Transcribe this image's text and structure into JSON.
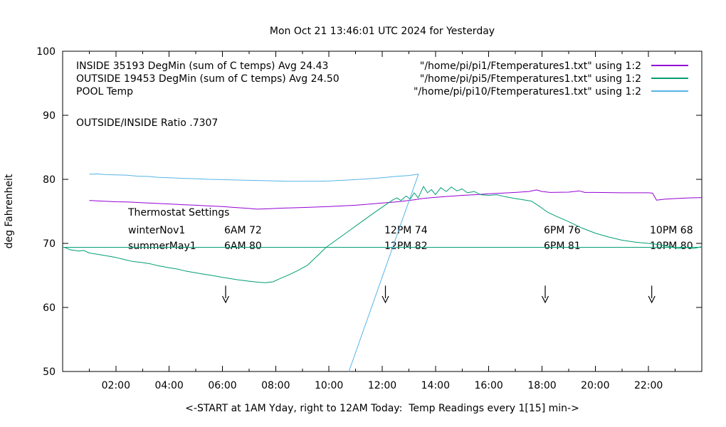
{
  "page": {
    "title": "Mon Oct 21 13:46:01 UTC 2024 for Yesterday"
  },
  "legend": {
    "entries": [
      {
        "left": "INSIDE 35193 DegMin (sum of C temps) Avg 24.43",
        "right": "\"/home/pi/pi1/Ftemperatures1.txt\" using 1:2",
        "color": "#9400D3"
      },
      {
        "left": "OUTSIDE 19453 DegMin (sum of C temps) Avg 24.50",
        "right": "\"/home/pi/pi5/Ftemperatures1.txt\" using 1:2",
        "color": "#009E73"
      },
      {
        "left": "POOL Temp",
        "right": "\"/home/pi/pi10/Ftemperatures1.txt\" using 1:2",
        "color": "#56B4E9"
      }
    ]
  },
  "annotations": {
    "ratio": "OUTSIDE/INSIDE Ratio .7307",
    "thermostat": {
      "heading": "Thermostat Settings",
      "rows": [
        {
          "label": "winterNov1",
          "settings": [
            "6AM 72",
            "12PM 74",
            "6PM 76",
            "10PM 68"
          ]
        },
        {
          "label": "summerMay1",
          "settings": [
            "6AM 80",
            "12PM 82",
            "6PM 81",
            "10PM 80"
          ]
        }
      ],
      "setting_hours": [
        6,
        12,
        18,
        22
      ]
    }
  },
  "chart_data": {
    "type": "line",
    "title": "Mon Oct 21 13:46:01 UTC 2024 for Yesterday",
    "xlabel": "<-START at 1AM Yday, right to 12AM Today:  Temp Readings every 1[15] min->",
    "ylabel": "deg Fahrenheit",
    "xlim": [
      0,
      24
    ],
    "ylim": [
      50,
      100
    ],
    "grid": false,
    "legend_position": "top-left-inside",
    "x_tick_hours": [
      2,
      4,
      6,
      8,
      10,
      12,
      14,
      16,
      18,
      20,
      22
    ],
    "x_tick_labels": [
      "02:00",
      "04:00",
      "06:00",
      "08:00",
      "10:00",
      "12:00",
      "14:00",
      "16:00",
      "18:00",
      "20:00",
      "22:00"
    ],
    "y_ticks": [
      50,
      60,
      70,
      80,
      90,
      100
    ],
    "y_tick_labels": [
      "50",
      "60",
      "70",
      "80",
      "90",
      "100"
    ],
    "reference_line": {
      "value_f": 69.4,
      "color": "#009E73"
    },
    "arrows": {
      "hours": [
        6,
        12,
        18,
        22
      ],
      "from_f": 63.4,
      "to_f": 61.0,
      "color": "#000000"
    },
    "series": [
      {
        "id": "inside",
        "name": "INSIDE 35193 DegMin (sum of C temps) Avg 24.43",
        "color": "#9400D3",
        "points": [
          [
            1.0,
            76.7
          ],
          [
            1.5,
            76.6
          ],
          [
            2.0,
            76.5
          ],
          [
            2.5,
            76.45
          ],
          [
            3.0,
            76.35
          ],
          [
            3.5,
            76.25
          ],
          [
            4.0,
            76.15
          ],
          [
            4.5,
            76.05
          ],
          [
            5.0,
            75.95
          ],
          [
            5.5,
            75.85
          ],
          [
            6.0,
            75.75
          ],
          [
            6.5,
            75.6
          ],
          [
            7.0,
            75.45
          ],
          [
            7.3,
            75.35
          ],
          [
            7.7,
            75.4
          ],
          [
            8.2,
            75.5
          ],
          [
            9.0,
            75.6
          ],
          [
            10.0,
            75.75
          ],
          [
            11.0,
            75.95
          ],
          [
            12.0,
            76.3
          ],
          [
            12.6,
            76.5
          ],
          [
            13.2,
            76.8
          ],
          [
            13.5,
            77.0
          ],
          [
            14.0,
            77.2
          ],
          [
            14.5,
            77.35
          ],
          [
            15.0,
            77.5
          ],
          [
            15.5,
            77.6
          ],
          [
            16.0,
            77.75
          ],
          [
            16.5,
            77.85
          ],
          [
            17.0,
            77.95
          ],
          [
            17.5,
            78.1
          ],
          [
            17.8,
            78.35
          ],
          [
            18.0,
            78.1
          ],
          [
            18.3,
            77.95
          ],
          [
            19.0,
            78.0
          ],
          [
            19.4,
            78.2
          ],
          [
            19.6,
            77.95
          ],
          [
            20.0,
            77.95
          ],
          [
            21.0,
            77.9
          ],
          [
            22.0,
            77.9
          ],
          [
            22.15,
            77.85
          ],
          [
            22.3,
            76.75
          ],
          [
            22.6,
            76.9
          ],
          [
            23.0,
            77.0
          ],
          [
            23.5,
            77.1
          ],
          [
            24.0,
            77.15
          ]
        ]
      },
      {
        "id": "outside",
        "name": "OUTSIDE 19453 DegMin (sum of C temps) Avg 24.50",
        "color": "#009E73",
        "points": [
          [
            0.05,
            69.4
          ],
          [
            0.3,
            69.0
          ],
          [
            0.6,
            68.8
          ],
          [
            0.8,
            68.9
          ],
          [
            1.0,
            68.5
          ],
          [
            1.3,
            68.3
          ],
          [
            1.6,
            68.1
          ],
          [
            2.0,
            67.8
          ],
          [
            2.3,
            67.5
          ],
          [
            2.6,
            67.2
          ],
          [
            3.0,
            67.0
          ],
          [
            3.3,
            66.8
          ],
          [
            3.6,
            66.5
          ],
          [
            4.0,
            66.2
          ],
          [
            4.3,
            66.0
          ],
          [
            4.6,
            65.7
          ],
          [
            5.0,
            65.4
          ],
          [
            5.3,
            65.2
          ],
          [
            5.6,
            65.0
          ],
          [
            6.0,
            64.7
          ],
          [
            6.3,
            64.5
          ],
          [
            6.6,
            64.3
          ],
          [
            7.0,
            64.1
          ],
          [
            7.3,
            63.95
          ],
          [
            7.6,
            63.85
          ],
          [
            7.9,
            64.0
          ],
          [
            8.1,
            64.4
          ],
          [
            8.5,
            65.1
          ],
          [
            8.8,
            65.7
          ],
          [
            9.2,
            66.6
          ],
          [
            9.9,
            69.4
          ],
          [
            10.8,
            72.1
          ],
          [
            11.7,
            74.8
          ],
          [
            12.4,
            76.8
          ],
          [
            12.55,
            77.1
          ],
          [
            12.7,
            76.7
          ],
          [
            12.9,
            77.4
          ],
          [
            13.05,
            76.9
          ],
          [
            13.2,
            77.9
          ],
          [
            13.35,
            77.1
          ],
          [
            13.55,
            78.9
          ],
          [
            13.7,
            77.9
          ],
          [
            13.85,
            78.4
          ],
          [
            14.0,
            77.6
          ],
          [
            14.2,
            78.7
          ],
          [
            14.4,
            78.1
          ],
          [
            14.6,
            78.8
          ],
          [
            14.8,
            78.2
          ],
          [
            15.0,
            78.5
          ],
          [
            15.2,
            77.9
          ],
          [
            15.45,
            78.1
          ],
          [
            15.7,
            77.6
          ],
          [
            16.0,
            77.5
          ],
          [
            16.3,
            77.6
          ],
          [
            16.6,
            77.3
          ],
          [
            17.0,
            77.0
          ],
          [
            17.3,
            76.8
          ],
          [
            17.6,
            76.6
          ],
          [
            17.9,
            75.8
          ],
          [
            18.2,
            74.9
          ],
          [
            18.5,
            74.3
          ],
          [
            19.0,
            73.4
          ],
          [
            19.5,
            72.4
          ],
          [
            20.0,
            71.6
          ],
          [
            20.5,
            71.0
          ],
          [
            21.0,
            70.5
          ],
          [
            21.5,
            70.2
          ],
          [
            22.0,
            70.0
          ],
          [
            22.4,
            69.8
          ],
          [
            22.8,
            69.5
          ],
          [
            23.1,
            69.2
          ],
          [
            23.4,
            69.4
          ],
          [
            23.7,
            69.2
          ],
          [
            24.0,
            69.5
          ]
        ]
      },
      {
        "id": "pool",
        "name": "POOL Temp",
        "color": "#56B4E9",
        "points": [
          [
            1.0,
            80.8
          ],
          [
            1.3,
            80.85
          ],
          [
            1.6,
            80.75
          ],
          [
            2.0,
            80.7
          ],
          [
            2.4,
            80.65
          ],
          [
            2.8,
            80.5
          ],
          [
            3.2,
            80.45
          ],
          [
            3.6,
            80.3
          ],
          [
            4.0,
            80.25
          ],
          [
            4.5,
            80.15
          ],
          [
            5.0,
            80.1
          ],
          [
            5.5,
            80.0
          ],
          [
            6.0,
            79.95
          ],
          [
            6.5,
            79.9
          ],
          [
            7.0,
            79.85
          ],
          [
            7.5,
            79.8
          ],
          [
            8.0,
            79.75
          ],
          [
            8.5,
            79.7
          ],
          [
            9.0,
            79.7
          ],
          [
            9.5,
            79.7
          ],
          [
            10.0,
            79.75
          ],
          [
            10.5,
            79.85
          ],
          [
            11.0,
            79.95
          ],
          [
            11.5,
            80.1
          ],
          [
            12.0,
            80.25
          ],
          [
            12.5,
            80.45
          ],
          [
            13.0,
            80.6
          ],
          [
            13.36,
            80.8
          ],
          [
            10.75,
            50.0
          ]
        ]
      }
    ]
  }
}
